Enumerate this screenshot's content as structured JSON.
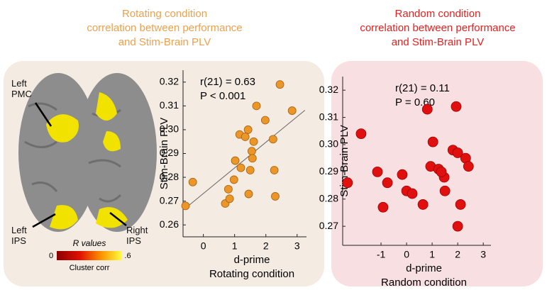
{
  "chart_data": [
    {
      "type": "scatter",
      "title": [
        "Rotating condition",
        "correlation between performance",
        "and Stim-Brain PLV"
      ],
      "title_color": "#f0a04b",
      "x_label": "d-prime",
      "subtitle": "Rotating condition",
      "y_label": "Stim-Brain PLV",
      "annotations": [
        "r(21) = 0.63",
        "P < 0.001"
      ],
      "color": "#eb9628",
      "fit_line": true,
      "xlim": [
        -0.65,
        3.3
      ],
      "xticks": [
        0,
        1,
        2,
        3
      ],
      "ylim": [
        0.255,
        0.325
      ],
      "yticks": [
        0.26,
        0.27,
        0.28,
        0.29,
        {
          "value": 0.3,
          "label": "0.30"
        },
        0.31,
        0.32
      ],
      "x": [
        -0.57,
        -0.34,
        0.7,
        0.84,
        0.8,
        0.98,
        1.02,
        1.2,
        1.16,
        1.43,
        1.45,
        1.5,
        1.55,
        1.57,
        1.61,
        1.7,
        1.34,
        1.98,
        2.23,
        2.27,
        2.3,
        2.45,
        2.84
      ],
      "values": [
        0.268,
        0.278,
        0.269,
        0.271,
        0.275,
        0.279,
        0.287,
        0.284,
        0.298,
        0.3,
        0.273,
        0.283,
        0.291,
        0.288,
        0.295,
        0.31,
        0.297,
        0.304,
        0.296,
        0.283,
        0.272,
        0.319,
        0.308
      ]
    },
    {
      "type": "scatter",
      "title": [
        "Random condition",
        "correlation between performance",
        "and Stim-Brain PLV"
      ],
      "title_color": "#e8201f",
      "x_label": "d-prime",
      "subtitle": "Random condition",
      "y_label": "Stim-Brain PLV",
      "annotations": [
        "r(21) = 0.11",
        "P = 0.60"
      ],
      "color": "#e01010",
      "fit_line": false,
      "xlim": [
        -2.5,
        3.3
      ],
      "xticks": [
        -1,
        0,
        1,
        2,
        3
      ],
      "ylim": [
        0.263,
        0.325
      ],
      "yticks": [
        0.27,
        0.28,
        0.29,
        {
          "value": 0.3,
          "label": "0.30"
        },
        0.31,
        0.32
      ],
      "x": [
        -2.31,
        -1.78,
        -1.14,
        -0.92,
        -0.75,
        -0.17,
        0.0,
        0.22,
        0.64,
        0.81,
        0.94,
        1.03,
        1.25,
        1.5,
        1.47,
        1.81,
        1.94,
        2.0,
        2.11,
        2.0,
        2.31,
        2.42,
        1.36
      ],
      "values": [
        0.286,
        0.304,
        0.29,
        0.277,
        0.286,
        0.289,
        0.283,
        0.282,
        0.278,
        0.313,
        0.292,
        0.301,
        0.291,
        0.283,
        0.288,
        0.298,
        0.314,
        0.297,
        0.278,
        0.27,
        0.295,
        0.292,
        0.29
      ]
    }
  ],
  "brain_figure": {
    "labels": [
      "Left\nPMC",
      "Left\nIPS",
      "Right\nIPS"
    ],
    "colorbar": {
      "title": "R values",
      "ticks": [
        0,
        {
          "value": 0.6,
          "label": ".6"
        }
      ],
      "label": "Cluster corr"
    }
  }
}
